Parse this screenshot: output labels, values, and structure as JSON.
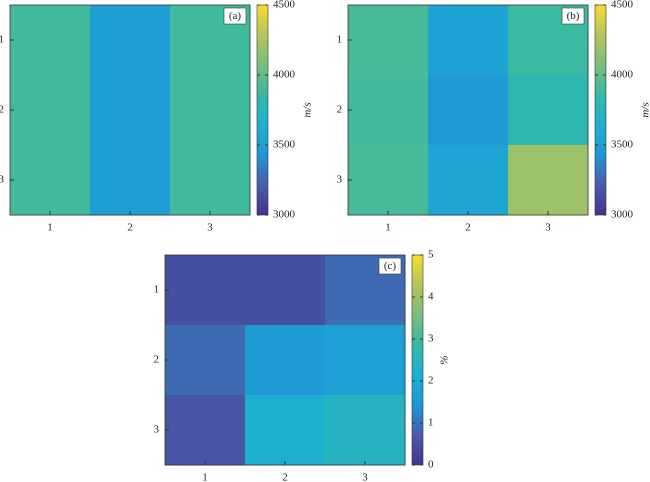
{
  "chart_data": [
    {
      "type": "heatmap",
      "panel_label": "(a)",
      "x": [
        "1",
        "2",
        "3"
      ],
      "y": [
        "1",
        "2",
        "3"
      ],
      "values": [
        [
          3900,
          3500,
          3900
        ],
        [
          3900,
          3500,
          3900
        ],
        [
          3900,
          3500,
          3900
        ]
      ],
      "clim": [
        3000,
        4500
      ],
      "cticks": [
        3000,
        3500,
        4000,
        4500
      ],
      "colorbar_label": "m/s",
      "colormap": [
        "#40348c",
        "#4a5ba9",
        "#1e97d6",
        "#1cb0d0",
        "#35b8a5",
        "#79bf7c",
        "#b6c45a",
        "#f8dc2e"
      ]
    },
    {
      "type": "heatmap",
      "panel_label": "(b)",
      "x": [
        "1",
        "2",
        "3"
      ],
      "y": [
        "1",
        "2",
        "3"
      ],
      "values": [
        [
          3920,
          3530,
          3880
        ],
        [
          3900,
          3450,
          3800
        ],
        [
          3920,
          3550,
          4200
        ]
      ],
      "clim": [
        3000,
        4500
      ],
      "cticks": [
        3000,
        3500,
        4000,
        4500
      ],
      "colorbar_label": "m/s",
      "colormap": [
        "#40348c",
        "#4a5ba9",
        "#1e97d6",
        "#1cb0d0",
        "#35b8a5",
        "#79bf7c",
        "#b6c45a",
        "#f8dc2e"
      ]
    },
    {
      "type": "heatmap",
      "panel_label": "(c)",
      "x": [
        "1",
        "2",
        "3"
      ],
      "y": [
        "1",
        "2",
        "3"
      ],
      "values": [
        [
          0.5,
          0.5,
          0.9
        ],
        [
          0.9,
          1.5,
          1.7
        ],
        [
          0.6,
          2.1,
          2.4
        ]
      ],
      "clim": [
        0,
        5
      ],
      "cticks": [
        0,
        1,
        2,
        3,
        4,
        5
      ],
      "colorbar_label": "%",
      "colormap": [
        "#40348c",
        "#4a5ba9",
        "#1e97d6",
        "#1cb0d0",
        "#35b8a5",
        "#79bf7c",
        "#b6c45a",
        "#f8dc2e"
      ]
    }
  ]
}
